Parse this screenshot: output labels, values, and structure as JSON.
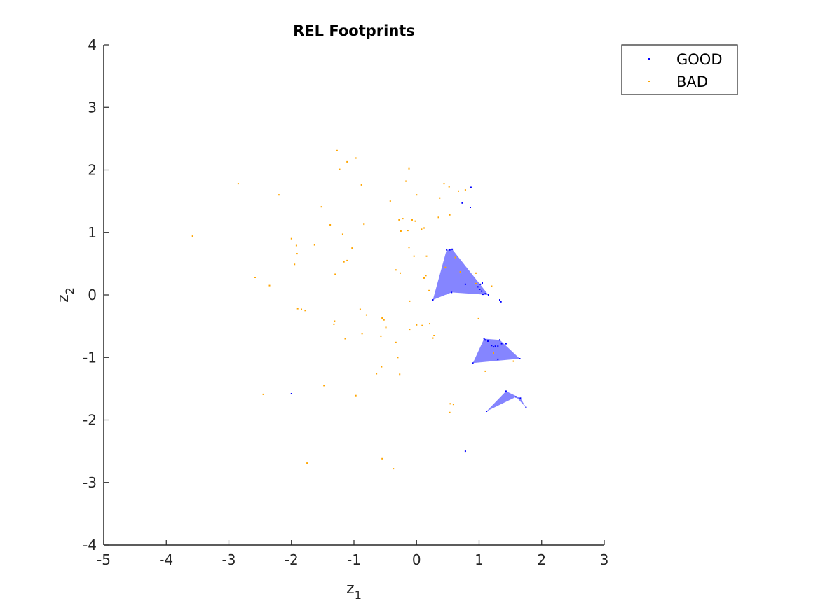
{
  "chart_data": {
    "type": "scatter",
    "title": "REL Footprints",
    "xlabel": "z",
    "xlabel_sub": "1",
    "ylabel": "z",
    "ylabel_sub": "2",
    "xlim": [
      -5,
      3
    ],
    "ylim": [
      -4,
      4
    ],
    "xticks": [
      -5,
      -4,
      -3,
      -2,
      -1,
      0,
      1,
      2,
      3
    ],
    "yticks": [
      -4,
      -3,
      -2,
      -1,
      0,
      1,
      2,
      3,
      4
    ],
    "grid": false,
    "legend_position": "top-right",
    "series": [
      {
        "name": "GOOD",
        "color": "#0000ff",
        "points": [
          [
            0.87,
            1.72
          ],
          [
            0.73,
            1.47
          ],
          [
            0.86,
            1.4
          ],
          [
            0.48,
            0.72
          ],
          [
            0.53,
            0.72
          ],
          [
            0.57,
            0.73
          ],
          [
            0.78,
            0.17
          ],
          [
            0.98,
            0.13
          ],
          [
            1.02,
            0.17
          ],
          [
            1.05,
            0.19
          ],
          [
            1.01,
            0.09
          ],
          [
            1.04,
            0.06
          ],
          [
            1.1,
            0.02
          ],
          [
            1.15,
            0.0
          ],
          [
            1.06,
            0.01
          ],
          [
            0.56,
            0.04
          ],
          [
            0.26,
            -0.08
          ],
          [
            1.33,
            -0.08
          ],
          [
            1.35,
            -0.11
          ],
          [
            1.08,
            -0.7
          ],
          [
            1.1,
            -0.72
          ],
          [
            1.14,
            -0.74
          ],
          [
            1.2,
            -0.81
          ],
          [
            1.23,
            -0.83
          ],
          [
            1.26,
            -0.82
          ],
          [
            1.3,
            -0.82
          ],
          [
            1.33,
            -0.72
          ],
          [
            1.36,
            -0.78
          ],
          [
            1.43,
            -0.78
          ],
          [
            1.3,
            -1.03
          ],
          [
            1.65,
            -1.02
          ],
          [
            0.9,
            -1.09
          ],
          [
            1.43,
            -1.54
          ],
          [
            1.59,
            -1.63
          ],
          [
            1.66,
            -1.65
          ],
          [
            1.75,
            -1.8
          ],
          [
            1.12,
            -1.86
          ],
          [
            -2.0,
            -1.58
          ],
          [
            0.78,
            -2.5
          ]
        ]
      },
      {
        "name": "BAD",
        "color": "#ffa500",
        "points": [
          [
            -1.27,
            2.31
          ],
          [
            -1.11,
            2.13
          ],
          [
            -0.97,
            2.19
          ],
          [
            -1.23,
            2.01
          ],
          [
            -0.12,
            2.02
          ],
          [
            -2.85,
            1.78
          ],
          [
            -0.88,
            1.76
          ],
          [
            -0.17,
            1.82
          ],
          [
            0.44,
            1.78
          ],
          [
            0.52,
            1.73
          ],
          [
            0.67,
            1.66
          ],
          [
            0.78,
            1.68
          ],
          [
            0.0,
            1.6
          ],
          [
            0.37,
            1.55
          ],
          [
            -0.42,
            1.5
          ],
          [
            -2.2,
            1.6
          ],
          [
            -1.52,
            1.41
          ],
          [
            -1.38,
            1.12
          ],
          [
            -0.84,
            1.13
          ],
          [
            -0.28,
            1.2
          ],
          [
            -0.22,
            1.22
          ],
          [
            -0.07,
            1.2
          ],
          [
            -0.02,
            1.18
          ],
          [
            0.08,
            1.05
          ],
          [
            0.12,
            1.07
          ],
          [
            0.35,
            1.24
          ],
          [
            0.53,
            1.28
          ],
          [
            -3.58,
            0.94
          ],
          [
            -1.18,
            0.97
          ],
          [
            -0.25,
            1.02
          ],
          [
            -0.14,
            1.03
          ],
          [
            -2.0,
            0.9
          ],
          [
            -1.63,
            0.8
          ],
          [
            -1.92,
            0.79
          ],
          [
            -1.91,
            0.66
          ],
          [
            -1.03,
            0.75
          ],
          [
            -0.12,
            0.76
          ],
          [
            -0.04,
            0.62
          ],
          [
            0.16,
            0.62
          ],
          [
            0.62,
            0.6
          ],
          [
            -1.16,
            0.53
          ],
          [
            -1.11,
            0.55
          ],
          [
            -1.95,
            0.49
          ],
          [
            -0.33,
            0.4
          ],
          [
            0.46,
            0.44
          ],
          [
            0.7,
            0.37
          ],
          [
            0.95,
            0.35
          ],
          [
            -2.58,
            0.28
          ],
          [
            -1.3,
            0.33
          ],
          [
            -0.26,
            0.35
          ],
          [
            0.12,
            0.27
          ],
          [
            0.15,
            0.31
          ],
          [
            -2.35,
            0.15
          ],
          [
            0.2,
            0.07
          ],
          [
            0.95,
            0.18
          ],
          [
            1.2,
            0.14
          ],
          [
            -0.11,
            -0.1
          ],
          [
            -1.9,
            -0.22
          ],
          [
            -1.84,
            -0.23
          ],
          [
            -1.78,
            -0.25
          ],
          [
            -0.9,
            -0.23
          ],
          [
            -0.8,
            -0.32
          ],
          [
            -0.55,
            -0.37
          ],
          [
            -0.52,
            -0.4
          ],
          [
            -1.31,
            -0.42
          ],
          [
            -1.32,
            -0.47
          ],
          [
            -0.49,
            -0.52
          ],
          [
            0.0,
            -0.48
          ],
          [
            0.09,
            -0.49
          ],
          [
            0.21,
            -0.46
          ],
          [
            0.99,
            -0.38
          ],
          [
            -0.11,
            -0.55
          ],
          [
            -0.87,
            -0.62
          ],
          [
            -0.57,
            -0.66
          ],
          [
            0.28,
            -0.65
          ],
          [
            0.26,
            -0.69
          ],
          [
            -1.14,
            -0.7
          ],
          [
            -0.33,
            -0.76
          ],
          [
            1.23,
            -0.93
          ],
          [
            1.55,
            -1.06
          ],
          [
            -0.3,
            -1.0
          ],
          [
            -0.56,
            -1.15
          ],
          [
            -0.64,
            -1.26
          ],
          [
            -0.27,
            -1.27
          ],
          [
            1.1,
            -1.22
          ],
          [
            -1.48,
            -1.45
          ],
          [
            -2.45,
            -1.59
          ],
          [
            -0.97,
            -1.61
          ],
          [
            0.54,
            -1.74
          ],
          [
            0.59,
            -1.75
          ],
          [
            0.53,
            -1.88
          ],
          [
            -1.75,
            -2.69
          ],
          [
            -0.55,
            -2.62
          ],
          [
            -0.37,
            -2.78
          ]
        ]
      }
    ],
    "footprints": [
      {
        "name": "region-1",
        "color": "#0000ff",
        "vertices": [
          [
            0.26,
            -0.08
          ],
          [
            0.48,
            0.72
          ],
          [
            0.57,
            0.73
          ],
          [
            1.15,
            0.0
          ],
          [
            0.56,
            0.04
          ]
        ]
      },
      {
        "name": "region-2",
        "color": "#0000ff",
        "vertices": [
          [
            0.9,
            -1.09
          ],
          [
            1.08,
            -0.7
          ],
          [
            1.33,
            -0.72
          ],
          [
            1.65,
            -1.02
          ]
        ]
      },
      {
        "name": "region-3",
        "color": "#0000ff",
        "vertices": [
          [
            1.12,
            -1.86
          ],
          [
            1.43,
            -1.54
          ],
          [
            1.66,
            -1.65
          ],
          [
            1.75,
            -1.8
          ],
          [
            1.59,
            -1.63
          ]
        ]
      }
    ]
  }
}
